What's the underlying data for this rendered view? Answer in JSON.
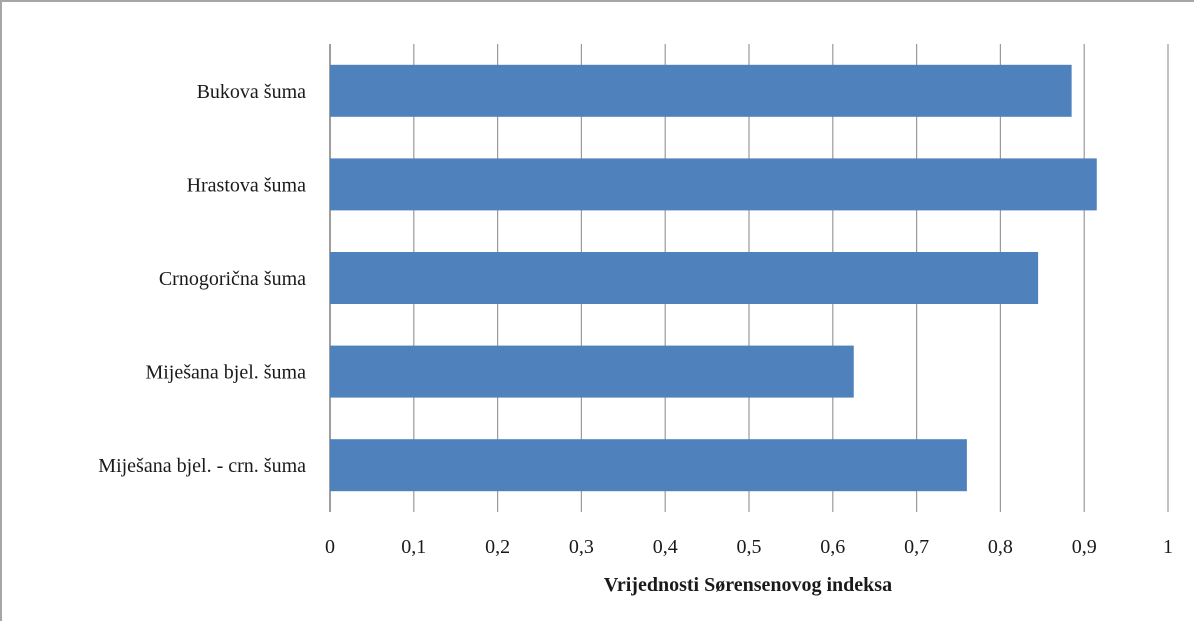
{
  "chart_data": {
    "type": "bar",
    "orientation": "horizontal",
    "categories": [
      "Bukova šuma",
      "Hrastova šuma",
      "Crnogorična šuma",
      "Miješana bjel. šuma",
      "Miješana bjel. - crn. šuma"
    ],
    "values": [
      0.885,
      0.915,
      0.845,
      0.625,
      0.76
    ],
    "xlabel": "Vrijednosti Sørensenovog indeksa",
    "ylabel": "",
    "xlim": [
      0,
      1
    ],
    "xticks": [
      "0",
      "0,1",
      "0,2",
      "0,3",
      "0,4",
      "0,5",
      "0,6",
      "0,7",
      "0,8",
      "0,9",
      "1"
    ],
    "grid": "vertical",
    "bar_color": "#4f81bd",
    "grid_color": "#9a9a9a"
  }
}
